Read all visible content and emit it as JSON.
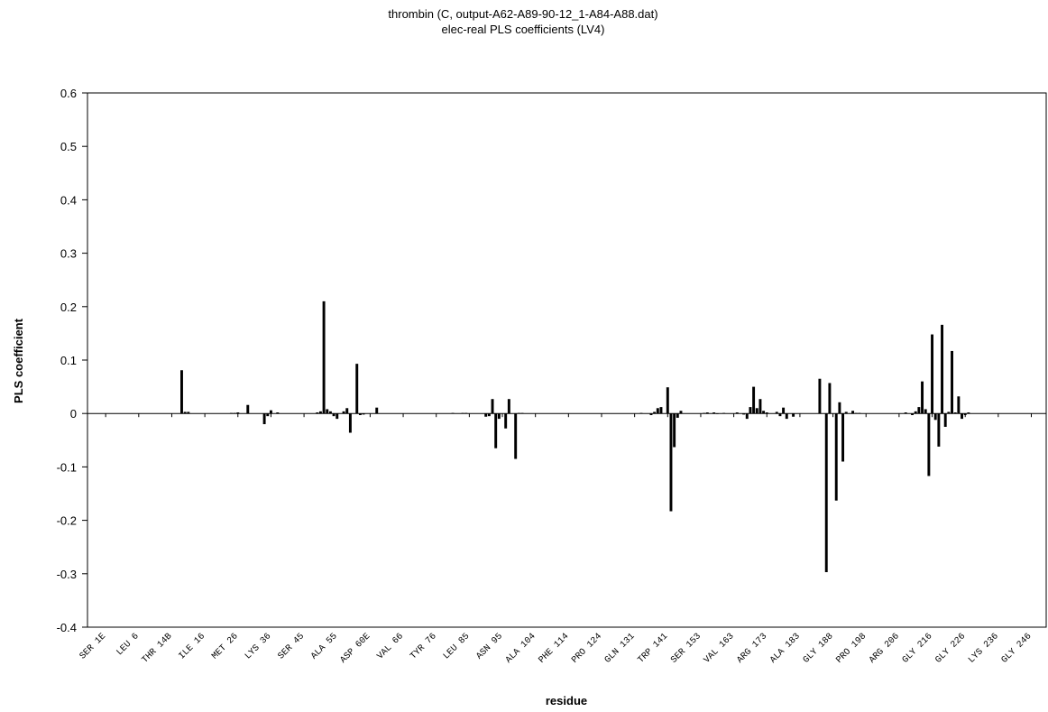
{
  "chart_data": {
    "type": "bar",
    "title": "thrombin (C, output-A62-A89-90-12_1-A84-A88.dat)",
    "subtitle": "elec-real PLS coefficients (LV4)",
    "x_label": "residue",
    "y_label": "PLS coefficient",
    "color": "#000000",
    "xlim": [
      -0.5,
      289.5
    ],
    "xticks": [
      {
        "value": 5,
        "label": "SER 1E"
      },
      {
        "value": 15,
        "label": "LEU 6"
      },
      {
        "value": 25,
        "label": "THR 14B"
      },
      {
        "value": 35,
        "label": "ILE 16"
      },
      {
        "value": 45,
        "label": "MET 26"
      },
      {
        "value": 55,
        "label": "LYS 36"
      },
      {
        "value": 65,
        "label": "SER 45"
      },
      {
        "value": 75,
        "label": "ALA 55"
      },
      {
        "value": 85,
        "label": "ASP 60E"
      },
      {
        "value": 95,
        "label": "VAL 66"
      },
      {
        "value": 105,
        "label": "TYR 76"
      },
      {
        "value": 115,
        "label": "LEU 85"
      },
      {
        "value": 125,
        "label": "ASN 95"
      },
      {
        "value": 135,
        "label": "ALA 104"
      },
      {
        "value": 145,
        "label": "PHE 114"
      },
      {
        "value": 155,
        "label": "PRO 124"
      },
      {
        "value": 165,
        "label": "GLN 131"
      },
      {
        "value": 175,
        "label": "TRP 141"
      },
      {
        "value": 185,
        "label": "SER 153"
      },
      {
        "value": 195,
        "label": "VAL 163"
      },
      {
        "value": 205,
        "label": "ARG 173"
      },
      {
        "value": 215,
        "label": "ALA 183"
      },
      {
        "value": 225,
        "label": "GLY 188"
      },
      {
        "value": 235,
        "label": "PRO 198"
      },
      {
        "value": 245,
        "label": "ARG 206"
      },
      {
        "value": 255,
        "label": "GLY 216"
      },
      {
        "value": 265,
        "label": "GLY 226"
      },
      {
        "value": 275,
        "label": "LYS 236"
      },
      {
        "value": 285,
        "label": "GLY 246"
      }
    ],
    "ylim": [
      -0.4,
      0.6
    ],
    "yticks": [
      -0.4,
      -0.3,
      -0.2,
      -0.1,
      0,
      0.1,
      0.2,
      0.3,
      0.4,
      0.5,
      0.6
    ],
    "x": [
      28,
      29,
      30,
      43,
      44,
      45,
      48,
      53,
      54,
      55,
      57,
      69,
      70,
      71,
      72,
      73,
      74,
      75,
      77,
      78,
      79,
      81,
      82,
      83,
      87,
      110,
      113,
      114,
      120,
      121,
      122,
      123,
      124,
      126,
      127,
      129,
      130,
      131,
      167,
      170,
      171,
      172,
      173,
      175,
      176,
      177,
      178,
      179,
      186,
      187,
      189,
      190,
      192,
      196,
      198,
      199,
      200,
      201,
      202,
      203,
      204,
      205,
      208,
      209,
      210,
      211,
      213,
      221,
      223,
      224,
      226,
      227,
      228,
      229,
      231,
      232,
      233,
      247,
      249,
      250,
      251,
      252,
      253,
      254,
      255,
      256,
      257,
      258,
      259,
      260,
      261,
      262,
      263,
      264,
      265,
      266
    ],
    "values": [
      0.081,
      0.003,
      0.003,
      0.001,
      0.001,
      0.002,
      0.016,
      -0.02,
      -0.005,
      0.006,
      0.002,
      0.002,
      0.004,
      0.21,
      0.008,
      0.004,
      -0.005,
      -0.01,
      0.004,
      0.01,
      -0.036,
      0.093,
      -0.003,
      -0.002,
      0.011,
      0.001,
      0.001,
      0.001,
      -0.006,
      -0.005,
      0.027,
      -0.065,
      -0.01,
      -0.028,
      0.027,
      -0.085,
      0.001,
      0.001,
      0.001,
      -0.003,
      0.003,
      0.01,
      0.012,
      0.049,
      -0.183,
      -0.063,
      -0.008,
      0.005,
      0.001,
      0.002,
      0.002,
      -0.001,
      0.001,
      0.002,
      -0.002,
      -0.01,
      0.012,
      0.05,
      0.01,
      0.027,
      0.005,
      0.002,
      0.003,
      -0.005,
      0.011,
      -0.01,
      -0.006,
      0.065,
      -0.297,
      0.057,
      -0.163,
      0.021,
      -0.09,
      0.003,
      0.005,
      0.001,
      0.001,
      0.002,
      -0.003,
      0.004,
      0.012,
      0.06,
      0.008,
      -0.117,
      0.148,
      -0.012,
      -0.062,
      0.166,
      -0.025,
      0.003,
      0.117,
      0.002,
      0.032,
      -0.01,
      -0.003,
      0.002
    ]
  }
}
